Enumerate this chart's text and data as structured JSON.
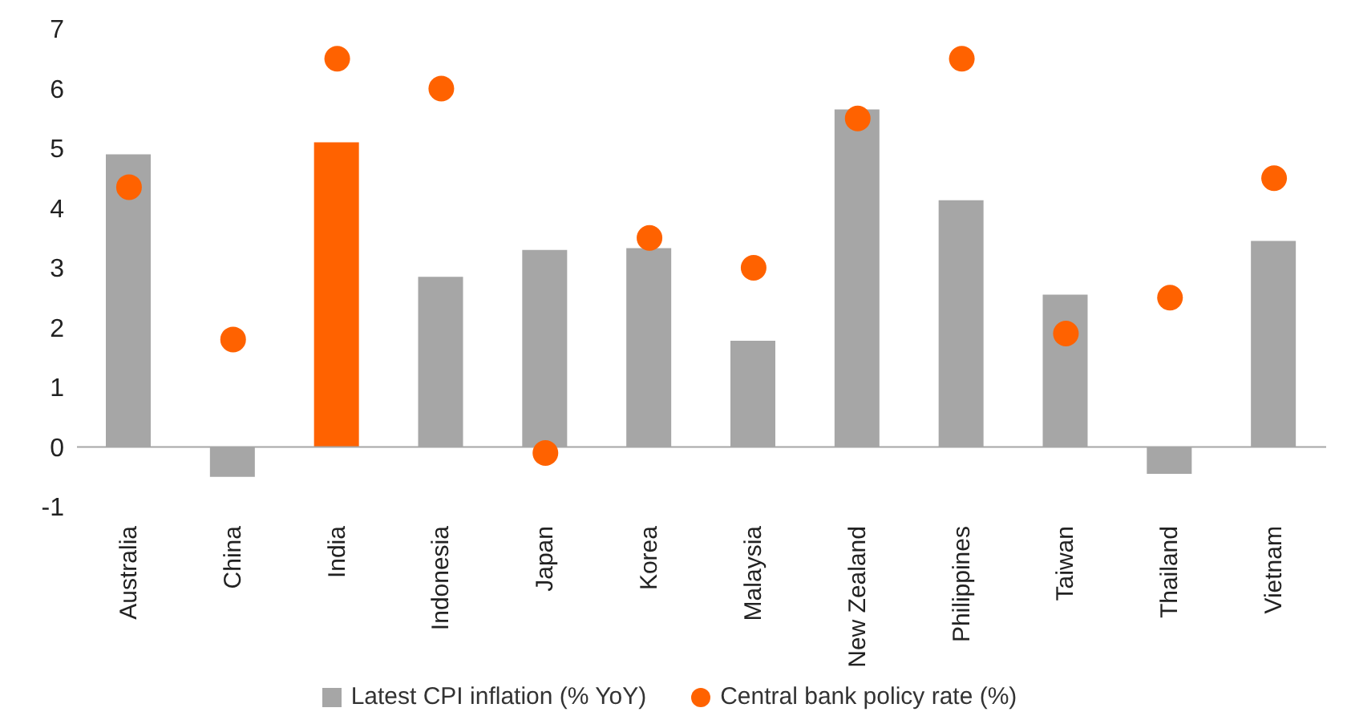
{
  "chart_data": {
    "type": "bar",
    "categories": [
      "Australia",
      "China",
      "India",
      "Indonesia",
      "Japan",
      "Korea",
      "Malaysia",
      "New Zealand",
      "Philippines",
      "Taiwan",
      "Thailand",
      "Vietnam"
    ],
    "series": [
      {
        "name": "Latest CPI inflation (% YoY)",
        "color": "#a6a6a6",
        "colors": [
          "#a6a6a6",
          "#a6a6a6",
          "#ff6200",
          "#a6a6a6",
          "#a6a6a6",
          "#a6a6a6",
          "#a6a6a6",
          "#a6a6a6",
          "#a6a6a6",
          "#a6a6a6",
          "#a6a6a6",
          "#a6a6a6"
        ],
        "values": [
          4.9,
          -0.5,
          5.1,
          2.85,
          3.3,
          3.33,
          1.78,
          5.65,
          4.13,
          2.55,
          -0.45,
          3.45
        ]
      },
      {
        "name": "Central bank policy rate (%)",
        "type": "scatter",
        "color": "#ff6200",
        "marker": "circle",
        "values": [
          4.35,
          1.8,
          6.5,
          6.0,
          -0.1,
          3.5,
          3.0,
          5.5,
          6.5,
          1.9,
          2.5,
          4.5
        ]
      }
    ],
    "ylim": [
      -1,
      7
    ],
    "yticks": [
      -1,
      0,
      1,
      2,
      3,
      4,
      5,
      6,
      7
    ],
    "grid": false,
    "legend": "bottom",
    "ref_lines": [
      {
        "axis": "y",
        "value": 0,
        "color": "#a6a6a6"
      }
    ]
  }
}
